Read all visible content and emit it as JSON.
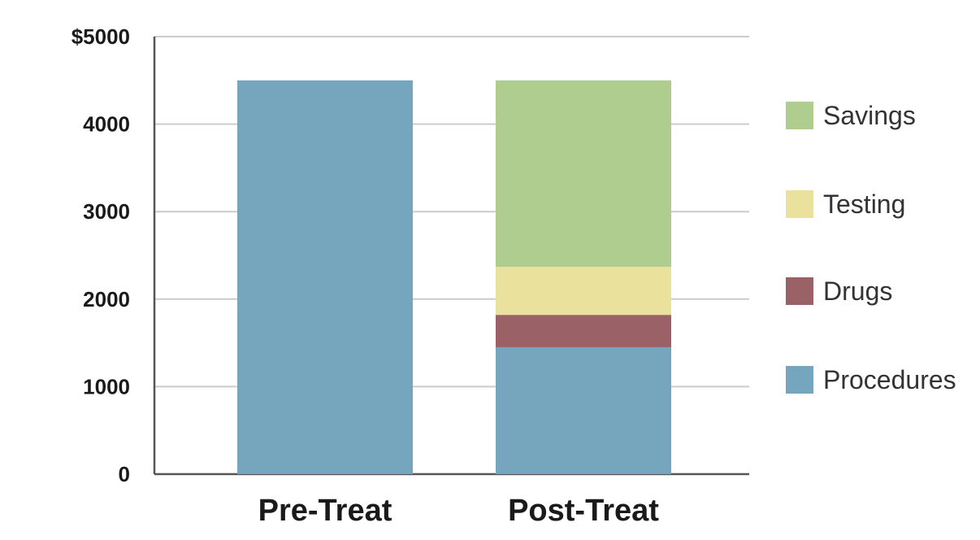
{
  "chart_data": {
    "type": "bar",
    "stacked": true,
    "categories": [
      "Pre-Treat",
      "Post-Treat"
    ],
    "ylim": [
      0,
      5000
    ],
    "yticks": [
      0,
      1000,
      2000,
      3000,
      4000,
      5000
    ],
    "ytick_labels": [
      "0",
      "1000",
      "2000",
      "3000",
      "4000",
      "$5000"
    ],
    "grid": true,
    "legend_position": "right",
    "title": "",
    "xlabel": "",
    "ylabel": "",
    "series": [
      {
        "name": "Procedures",
        "color": "#76a6be",
        "values": [
          4500,
          1450
        ]
      },
      {
        "name": "Drugs",
        "color": "#9a6167",
        "values": [
          0,
          370
        ]
      },
      {
        "name": "Testing",
        "color": "#eae29c",
        "values": [
          0,
          550
        ]
      },
      {
        "name": "Savings",
        "color": "#b0cd90",
        "values": [
          0,
          2130
        ]
      }
    ],
    "legend_order": [
      "Savings",
      "Testing",
      "Drugs",
      "Procedures"
    ]
  }
}
